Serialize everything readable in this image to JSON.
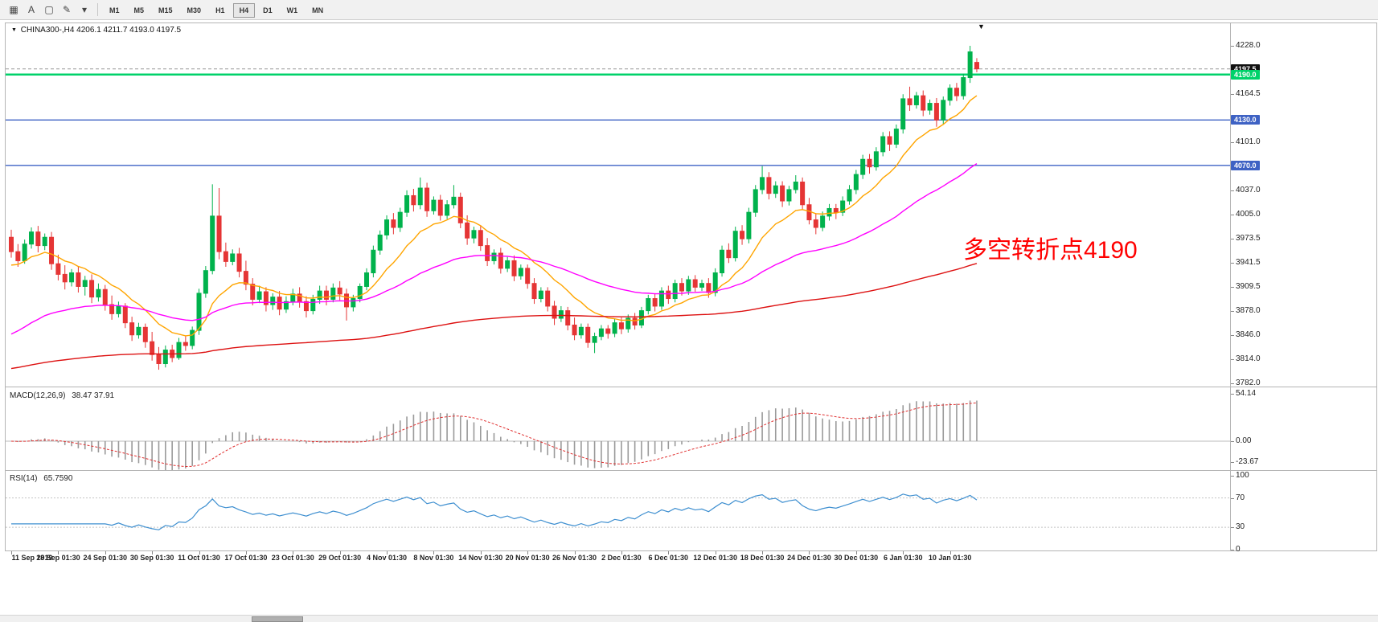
{
  "toolbar": {
    "tools": [
      {
        "name": "chart-grid-icon",
        "glyph": "▦"
      },
      {
        "name": "cursor-a-tool",
        "glyph": "A"
      },
      {
        "name": "shape-tool-icon",
        "glyph": "▢"
      },
      {
        "name": "draw-tool-icon",
        "glyph": "✎"
      },
      {
        "name": "draw-tool-dropdown-icon",
        "glyph": "▾"
      }
    ],
    "timeframes": [
      {
        "label": "M1",
        "active": false
      },
      {
        "label": "M5",
        "active": false
      },
      {
        "label": "M15",
        "active": false
      },
      {
        "label": "M30",
        "active": false
      },
      {
        "label": "H1",
        "active": false
      },
      {
        "label": "H4",
        "active": true
      },
      {
        "label": "D1",
        "active": false
      },
      {
        "label": "W1",
        "active": false
      },
      {
        "label": "MN",
        "active": false
      }
    ]
  },
  "chart_header": {
    "dropdown_glyph": "▼",
    "text": "CHINA300-,H4 4206.1 4211.7 4193.0 4197.5"
  },
  "scroll_marker_glyph": "▼",
  "chart_data": {
    "type": "candlestick",
    "symbol": "CHINA300-",
    "timeframe": "H4",
    "current_bar": {
      "open": 4206.1,
      "high": 4211.7,
      "low": 4193.0,
      "close": 4197.5
    },
    "colors": {
      "bull": "#00b24c",
      "bear": "#e53535",
      "ma_fast": "#ffa500",
      "ma_mid": "#ff00ff",
      "ma_slow": "#dd1111",
      "line_green": "#00d26a",
      "line_blue": "#3e62c4",
      "current_price_line": "#999999",
      "macd_hist": "#9a9a9a",
      "macd_signal": "#e03030",
      "rsi_line": "#3e8fd0",
      "annotation": "#ff0000",
      "tag_current_bg": "#111111"
    },
    "h_lines": [
      {
        "value": 4190.0,
        "color_key": "line_green",
        "width": 2.5
      },
      {
        "value": 4130.0,
        "color_key": "line_blue",
        "width": 1.4
      },
      {
        "value": 4070.0,
        "color_key": "line_blue",
        "width": 1.4
      }
    ],
    "price_tags": [
      {
        "label": "4197.5",
        "value": 4197.5,
        "bg_key": "tag_current_bg"
      },
      {
        "label": "4190.0",
        "value": 4190.0,
        "bg_key": "line_green"
      },
      {
        "label": "4130.0",
        "value": 4130.0,
        "bg_key": "line_blue"
      },
      {
        "label": "4070.0",
        "value": 4070.0,
        "bg_key": "line_blue"
      }
    ],
    "y_axis_ticks": [
      4228.0,
      4164.5,
      4101.0,
      4037.0,
      4005.0,
      3973.5,
      3941.5,
      3909.5,
      3878.0,
      3846.0,
      3814.0,
      3782.0
    ],
    "y_range": {
      "min": 3782.0,
      "max": 4228.0
    },
    "candles": [
      [
        3975,
        3985,
        3948,
        3956
      ],
      [
        3956,
        3966,
        3936,
        3944
      ],
      [
        3944,
        3972,
        3940,
        3966
      ],
      [
        3966,
        3988,
        3960,
        3982
      ],
      [
        3982,
        3990,
        3955,
        3964
      ],
      [
        3964,
        3980,
        3958,
        3975
      ],
      [
        3975,
        3982,
        3932,
        3940
      ],
      [
        3940,
        3952,
        3918,
        3926
      ],
      [
        3926,
        3938,
        3906,
        3916
      ],
      [
        3916,
        3933,
        3910,
        3928
      ],
      [
        3928,
        3936,
        3902,
        3910
      ],
      [
        3910,
        3924,
        3898,
        3918
      ],
      [
        3918,
        3926,
        3888,
        3896
      ],
      [
        3896,
        3914,
        3890,
        3906
      ],
      [
        3906,
        3912,
        3878,
        3886
      ],
      [
        3886,
        3898,
        3866,
        3874
      ],
      [
        3874,
        3890,
        3869,
        3884
      ],
      [
        3884,
        3888,
        3855,
        3862
      ],
      [
        3862,
        3870,
        3838,
        3846
      ],
      [
        3846,
        3862,
        3841,
        3856
      ],
      [
        3856,
        3861,
        3829,
        3837
      ],
      [
        3837,
        3850,
        3812,
        3820
      ],
      [
        3820,
        3830,
        3800,
        3808
      ],
      [
        3808,
        3832,
        3803,
        3826
      ],
      [
        3826,
        3833,
        3810,
        3816
      ],
      [
        3816,
        3842,
        3813,
        3836
      ],
      [
        3836,
        3845,
        3825,
        3832
      ],
      [
        3832,
        3857,
        3827,
        3852
      ],
      [
        3852,
        3907,
        3846,
        3901
      ],
      [
        3901,
        3937,
        3895,
        3931
      ],
      [
        3931,
        4045,
        3926,
        4003
      ],
      [
        4003,
        4040,
        3946,
        3956
      ],
      [
        3956,
        3968,
        3936,
        3943
      ],
      [
        3943,
        3959,
        3938,
        3953
      ],
      [
        3953,
        3961,
        3922,
        3930
      ],
      [
        3930,
        3944,
        3905,
        3913
      ],
      [
        3913,
        3921,
        3885,
        3893
      ],
      [
        3893,
        3911,
        3888,
        3903
      ],
      [
        3903,
        3909,
        3877,
        3886
      ],
      [
        3886,
        3901,
        3879,
        3896
      ],
      [
        3896,
        3904,
        3872,
        3880
      ],
      [
        3880,
        3897,
        3875,
        3890
      ],
      [
        3890,
        3907,
        3885,
        3900
      ],
      [
        3900,
        3909,
        3882,
        3890
      ],
      [
        3890,
        3897,
        3869,
        3878
      ],
      [
        3878,
        3899,
        3873,
        3893
      ],
      [
        3893,
        3911,
        3887,
        3904
      ],
      [
        3904,
        3911,
        3885,
        3893
      ],
      [
        3893,
        3914,
        3889,
        3908
      ],
      [
        3908,
        3917,
        3892,
        3900
      ],
      [
        3900,
        3907,
        3865,
        3883
      ],
      [
        3883,
        3899,
        3877,
        3894
      ],
      [
        3894,
        3914,
        3889,
        3910
      ],
      [
        3910,
        3934,
        3905,
        3928
      ],
      [
        3928,
        3964,
        3922,
        3958
      ],
      [
        3958,
        3984,
        3952,
        3978
      ],
      [
        3978,
        4004,
        3972,
        3998
      ],
      [
        3998,
        4007,
        3979,
        3988
      ],
      [
        3988,
        4014,
        3982,
        4008
      ],
      [
        4008,
        4037,
        4002,
        4030
      ],
      [
        4030,
        4039,
        4009,
        4018
      ],
      [
        4018,
        4054,
        4012,
        4040
      ],
      [
        4040,
        4047,
        4002,
        4010
      ],
      [
        4010,
        4029,
        4005,
        4024
      ],
      [
        4024,
        4031,
        3997,
        4004
      ],
      [
        4004,
        4024,
        3999,
        4018
      ],
      [
        4018,
        4044,
        4013,
        4028
      ],
      [
        4028,
        4034,
        3987,
        3994
      ],
      [
        3994,
        4004,
        3965,
        3974
      ],
      [
        3974,
        3989,
        3967,
        3984
      ],
      [
        3984,
        3991,
        3957,
        3964
      ],
      [
        3964,
        3974,
        3937,
        3944
      ],
      [
        3944,
        3959,
        3939,
        3954
      ],
      [
        3954,
        3961,
        3927,
        3934
      ],
      [
        3934,
        3949,
        3929,
        3944
      ],
      [
        3944,
        3951,
        3917,
        3924
      ],
      [
        3924,
        3939,
        3919,
        3934
      ],
      [
        3934,
        3939,
        3907,
        3914
      ],
      [
        3914,
        3921,
        3887,
        3894
      ],
      [
        3894,
        3909,
        3889,
        3904
      ],
      [
        3904,
        3909,
        3877,
        3884
      ],
      [
        3884,
        3891,
        3859,
        3868
      ],
      [
        3868,
        3884,
        3863,
        3878
      ],
      [
        3878,
        3883,
        3852,
        3859
      ],
      [
        3859,
        3869,
        3839,
        3846
      ],
      [
        3846,
        3861,
        3841,
        3856
      ],
      [
        3856,
        3861,
        3829,
        3836
      ],
      [
        3836,
        3849,
        3822,
        3844
      ],
      [
        3844,
        3859,
        3839,
        3854
      ],
      [
        3854,
        3859,
        3841,
        3848
      ],
      [
        3848,
        3867,
        3843,
        3862
      ],
      [
        3862,
        3869,
        3847,
        3854
      ],
      [
        3854,
        3873,
        3849,
        3868
      ],
      [
        3868,
        3875,
        3853,
        3859
      ],
      [
        3859,
        3883,
        3855,
        3878
      ],
      [
        3878,
        3899,
        3873,
        3894
      ],
      [
        3894,
        3901,
        3877,
        3884
      ],
      [
        3884,
        3909,
        3879,
        3904
      ],
      [
        3904,
        3911,
        3887,
        3894
      ],
      [
        3894,
        3919,
        3889,
        3914
      ],
      [
        3914,
        3921,
        3898,
        3904
      ],
      [
        3904,
        3924,
        3899,
        3919
      ],
      [
        3919,
        3925,
        3903,
        3909
      ],
      [
        3909,
        3919,
        3904,
        3914
      ],
      [
        3914,
        3921,
        3895,
        3902
      ],
      [
        3902,
        3934,
        3897,
        3928
      ],
      [
        3928,
        3964,
        3923,
        3958
      ],
      [
        3958,
        3967,
        3941,
        3948
      ],
      [
        3948,
        3989,
        3943,
        3983
      ],
      [
        3983,
        3991,
        3965,
        3973
      ],
      [
        3973,
        4014,
        3967,
        4008
      ],
      [
        4008,
        4044,
        4002,
        4038
      ],
      [
        4038,
        4069,
        4032,
        4054
      ],
      [
        4054,
        4061,
        4025,
        4033
      ],
      [
        4033,
        4049,
        4027,
        4043
      ],
      [
        4043,
        4049,
        4015,
        4023
      ],
      [
        4023,
        4043,
        4017,
        4038
      ],
      [
        4038,
        4057,
        4033,
        4048
      ],
      [
        4048,
        4054,
        4011,
        4018
      ],
      [
        4018,
        4027,
        3992,
        3998
      ],
      [
        3998,
        4007,
        3979,
        3988
      ],
      [
        3988,
        4009,
        3983,
        4003
      ],
      [
        4003,
        4019,
        3997,
        4013
      ],
      [
        4013,
        4019,
        3999,
        4008
      ],
      [
        4008,
        4029,
        4003,
        4023
      ],
      [
        4023,
        4044,
        4018,
        4038
      ],
      [
        4038,
        4064,
        4032,
        4058
      ],
      [
        4058,
        4084,
        4052,
        4078
      ],
      [
        4078,
        4085,
        4059,
        4068
      ],
      [
        4068,
        4094,
        4063,
        4088
      ],
      [
        4088,
        4114,
        4082,
        4108
      ],
      [
        4108,
        4115,
        4089,
        4098
      ],
      [
        4098,
        4124,
        4093,
        4118
      ],
      [
        4118,
        4164,
        4112,
        4158
      ],
      [
        4158,
        4174,
        4142,
        4150
      ],
      [
        4150,
        4167,
        4145,
        4162
      ],
      [
        4162,
        4169,
        4135,
        4143
      ],
      [
        4143,
        4157,
        4137,
        4152
      ],
      [
        4152,
        4159,
        4121,
        4130
      ],
      [
        4130,
        4161,
        4125,
        4156
      ],
      [
        4156,
        4177,
        4149,
        4172
      ],
      [
        4172,
        4179,
        4155,
        4162
      ],
      [
        4162,
        4191,
        4157,
        4186
      ],
      [
        4186,
        4228,
        4179,
        4220
      ],
      [
        4206.1,
        4211.7,
        4193,
        4197.5
      ]
    ],
    "time_labels": [
      {
        "i": 0,
        "label": "11 Sep 2019"
      },
      {
        "i": 7,
        "label": "18 Sep 01:30"
      },
      {
        "i": 14,
        "label": "24 Sep 01:30"
      },
      {
        "i": 21,
        "label": "30 Sep 01:30"
      },
      {
        "i": 28,
        "label": "11 Oct 01:30"
      },
      {
        "i": 35,
        "label": "17 Oct 01:30"
      },
      {
        "i": 42,
        "label": "23 Oct 01:30"
      },
      {
        "i": 49,
        "label": "29 Oct 01:30"
      },
      {
        "i": 56,
        "label": "4 Nov 01:30"
      },
      {
        "i": 63,
        "label": "8 Nov 01:30"
      },
      {
        "i": 70,
        "label": "14 Nov 01:30"
      },
      {
        "i": 77,
        "label": "20 Nov 01:30"
      },
      {
        "i": 84,
        "label": "26 Nov 01:30"
      },
      {
        "i": 91,
        "label": "2 Dec 01:30"
      },
      {
        "i": 98,
        "label": "6 Dec 01:30"
      },
      {
        "i": 105,
        "label": "12 Dec 01:30"
      },
      {
        "i": 112,
        "label": "18 Dec 01:30"
      },
      {
        "i": 119,
        "label": "24 Dec 01:30"
      },
      {
        "i": 126,
        "label": "30 Dec 01:30"
      },
      {
        "i": 133,
        "label": "6 Jan 01:30"
      },
      {
        "i": 140,
        "label": "10 Jan 01:30"
      }
    ],
    "indicators": {
      "macd": {
        "label": "MACD(12,26,9)",
        "values_text": "38.47 37.91",
        "fast": 12,
        "slow": 26,
        "signal": 9,
        "axis_labels": [
          "54.14",
          "0.00",
          "-23.67"
        ],
        "axis_values": [
          54.14,
          0,
          -23.67
        ]
      },
      "rsi": {
        "label": "RSI(14)",
        "value_text": "65.7590",
        "period": 14,
        "axis_values": [
          100,
          70,
          30,
          0
        ],
        "levels": [
          70,
          30
        ]
      }
    },
    "annotation": {
      "text": "多空转折点4190",
      "color": "#ff0000"
    }
  }
}
